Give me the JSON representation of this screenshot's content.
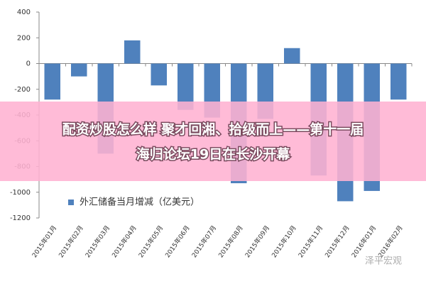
{
  "chart_data": {
    "type": "bar",
    "categories": [
      "2015年01月",
      "2015年02月",
      "2015年03月",
      "2015年04月",
      "2015年05月",
      "2015年06月",
      "2015年07月",
      "2015年08月",
      "2015年09月",
      "2015年10月",
      "2015年11月",
      "2015年12月",
      "2016年01月",
      "2016年02月"
    ],
    "series": [
      {
        "name": "外汇储备当月增减（亿美元）",
        "color": "#4f81bd",
        "values": [
          -280,
          -100,
          -700,
          180,
          -170,
          -360,
          -420,
          -930,
          -430,
          120,
          -870,
          -1070,
          -990,
          -280
        ]
      }
    ],
    "ylim": [
      -1200,
      400
    ],
    "yticks": [
      -1200,
      -1000,
      -800,
      -600,
      -400,
      -200,
      0,
      200,
      400
    ],
    "grid": false,
    "legend": "bottom-left"
  },
  "banner": {
    "lines": [
      "配资炒股怎么样 聚才回湘、拾级而上——第十一届",
      "海归论坛19日在长沙开幕"
    ]
  },
  "watermark": "泽平宏观"
}
